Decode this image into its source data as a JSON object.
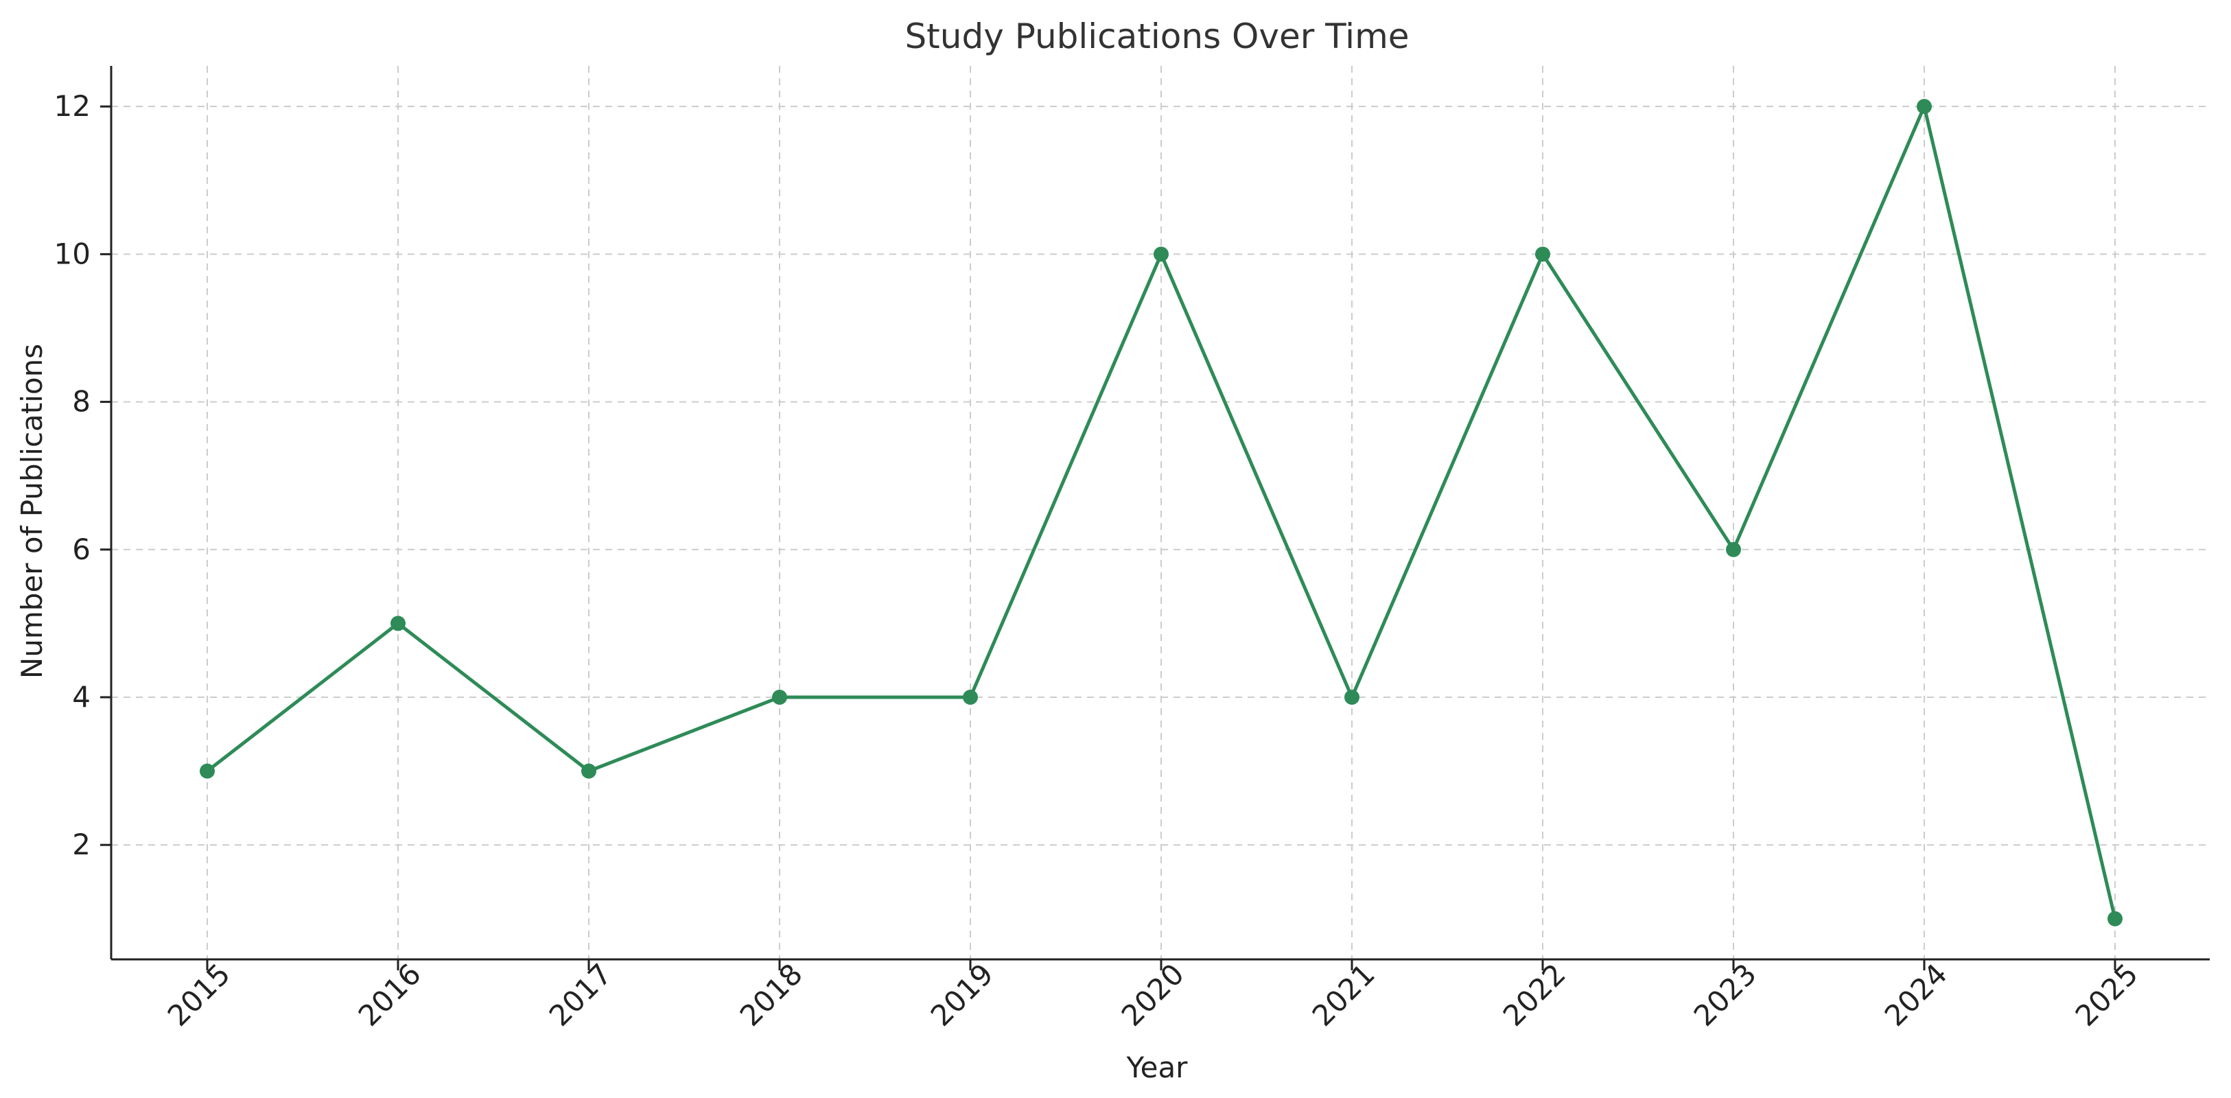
{
  "chart_data": {
    "type": "line",
    "title": "Study Publications Over Time",
    "xlabel": "Year",
    "ylabel": "Number of Publications",
    "x": [
      "2015",
      "2016",
      "2017",
      "2018",
      "2019",
      "2020",
      "2021",
      "2022",
      "2023",
      "2024",
      "2025"
    ],
    "y_ticks": [
      "2",
      "4",
      "6",
      "8",
      "10",
      "12"
    ],
    "ylim": [
      0.45,
      12.55
    ],
    "grid": true,
    "series": [
      {
        "values": [
          3,
          5,
          3,
          4,
          4,
          10,
          4,
          10,
          6,
          12,
          1
        ],
        "color": "#2e8b57",
        "marker": "circle"
      }
    ]
  }
}
